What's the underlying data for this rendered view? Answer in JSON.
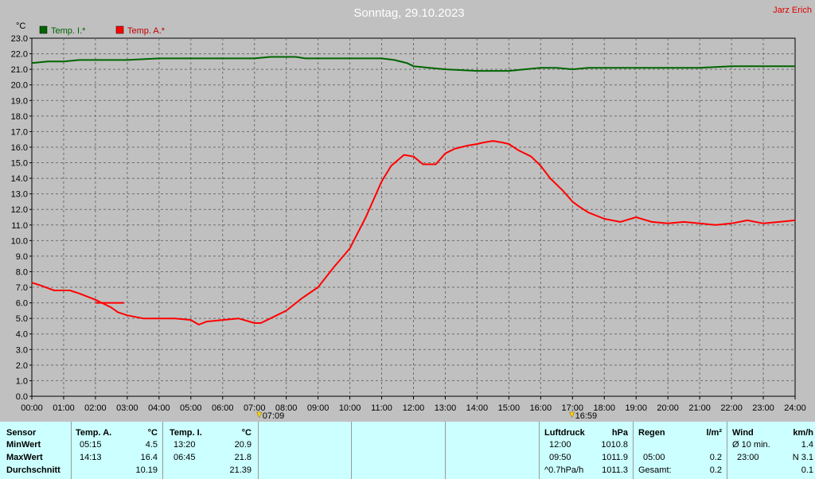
{
  "header": {
    "title": "Sonntag, 29.10.2023",
    "author": "Jarz Erich"
  },
  "chart_data": {
    "type": "line",
    "ylabel": "°C",
    "ylim": [
      0,
      23
    ],
    "y_ticks": [
      "0.0",
      "1.0",
      "2.0",
      "3.0",
      "4.0",
      "5.0",
      "6.0",
      "7.0",
      "8.0",
      "9.0",
      "10.0",
      "11.0",
      "12.0",
      "13.0",
      "14.0",
      "15.0",
      "16.0",
      "17.0",
      "18.0",
      "19.0",
      "20.0",
      "21.0",
      "22.0",
      "23.0"
    ],
    "x_ticks": [
      "00:00",
      "01:00",
      "02:00",
      "03:00",
      "04:00",
      "05:00",
      "06:00",
      "07:00",
      "08:00",
      "09:00",
      "10:00",
      "11:00",
      "12:00",
      "13:00",
      "14:00",
      "15:00",
      "16:00",
      "17:00",
      "18:00",
      "19:00",
      "20:00",
      "21:00",
      "22:00",
      "23:00",
      "24:00"
    ],
    "xlim": [
      0,
      24
    ],
    "grid": true,
    "legend_position": "top-left",
    "sunrise": "07:09",
    "sunset": "16:59",
    "series": [
      {
        "name": "Temp. I.*",
        "color": "#006400",
        "x": [
          0,
          0.5,
          1,
          1.5,
          2,
          3,
          4,
          5,
          6,
          7,
          7.5,
          8,
          8.3,
          8.6,
          9,
          10,
          11,
          11.4,
          11.8,
          12,
          12.5,
          13,
          14,
          14.5,
          15,
          15.5,
          16,
          16.5,
          17,
          17.5,
          18,
          19,
          20,
          21,
          22,
          23,
          24
        ],
        "y": [
          21.4,
          21.5,
          21.5,
          21.6,
          21.6,
          21.6,
          21.7,
          21.7,
          21.7,
          21.7,
          21.8,
          21.8,
          21.8,
          21.7,
          21.7,
          21.7,
          21.7,
          21.6,
          21.4,
          21.2,
          21.1,
          21.0,
          20.9,
          20.9,
          20.9,
          21.0,
          21.1,
          21.1,
          21.0,
          21.1,
          21.1,
          21.1,
          21.1,
          21.1,
          21.2,
          21.2,
          21.2
        ]
      },
      {
        "name": "Temp. A.*",
        "color": "#ff0000",
        "x": [
          0,
          0.3,
          0.7,
          1,
          1.2,
          1.5,
          2,
          2.3,
          2.5,
          2.7,
          3,
          3.5,
          4,
          4.5,
          5,
          5.25,
          5.5,
          6,
          6.5,
          7,
          7.2,
          7.5,
          8,
          8.5,
          9,
          9.5,
          10,
          10.5,
          11,
          11.3,
          11.7,
          12,
          12.3,
          12.7,
          13,
          13.3,
          13.7,
          14,
          14.2,
          14.5,
          14.8,
          15,
          15.3,
          15.7,
          16,
          16.3,
          16.7,
          17,
          17.2,
          17.5,
          18,
          18.5,
          19,
          19.5,
          20,
          20.5,
          21,
          21.5,
          22,
          22.5,
          23,
          23.5,
          24
        ],
        "y": [
          7.3,
          7.1,
          6.8,
          6.8,
          6.8,
          6.6,
          6.2,
          5.9,
          5.7,
          5.4,
          5.2,
          5.0,
          5.0,
          5.0,
          4.9,
          4.6,
          4.8,
          4.9,
          5.0,
          4.7,
          4.7,
          5.0,
          5.5,
          6.3,
          7.0,
          8.3,
          9.5,
          11.5,
          13.8,
          14.8,
          15.5,
          15.4,
          14.9,
          14.9,
          15.6,
          15.9,
          16.1,
          16.2,
          16.3,
          16.4,
          16.3,
          16.2,
          15.8,
          15.4,
          14.8,
          14.0,
          13.2,
          12.5,
          12.2,
          11.8,
          11.4,
          11.2,
          11.5,
          11.2,
          11.1,
          11.2,
          11.1,
          11.0,
          11.1,
          11.3,
          11.1,
          11.2,
          11.3
        ]
      }
    ],
    "overlay_segment": {
      "x": [
        2.0,
        2.9
      ],
      "y": [
        6.0,
        6.0
      ]
    }
  },
  "stats": {
    "sensor": {
      "header": "Sensor",
      "rows": [
        "MinWert",
        "MaxWert",
        "Durchschnitt"
      ]
    },
    "temp_a": {
      "header": "Temp. A.",
      "unit": "°C",
      "rows": [
        {
          "time": "05:15",
          "value": "4.5"
        },
        {
          "time": "14:13",
          "value": "16.4"
        },
        {
          "time": "",
          "value": "10.19"
        }
      ]
    },
    "temp_i": {
      "header": "Temp. I.",
      "unit": "°C",
      "rows": [
        {
          "time": "13:20",
          "value": "20.9"
        },
        {
          "time": "06:45",
          "value": "21.8"
        },
        {
          "time": "",
          "value": "21.39"
        }
      ]
    },
    "pressure": {
      "header": "Luftdruck",
      "unit": "hPa",
      "rows": [
        {
          "time": "12:00",
          "value": "1010.8"
        },
        {
          "time": "09:50",
          "value": "1011.9"
        },
        {
          "time": "^0.7hPa/h",
          "value": "1011.3"
        }
      ]
    },
    "rain": {
      "header": "Regen",
      "unit": "l/m²",
      "rows": [
        {
          "time": "",
          "value": ""
        },
        {
          "time": "05:00",
          "value": "0.2"
        },
        {
          "time": "Gesamt:",
          "value": "0.2"
        }
      ]
    },
    "wind": {
      "header": "Wind",
      "unit": "km/h",
      "rows": [
        {
          "time": "Ø 10 min.",
          "value": "1.4"
        },
        {
          "time": "23:00",
          "value": "N 3.1"
        },
        {
          "time": "",
          "value": "0.1"
        }
      ]
    }
  }
}
